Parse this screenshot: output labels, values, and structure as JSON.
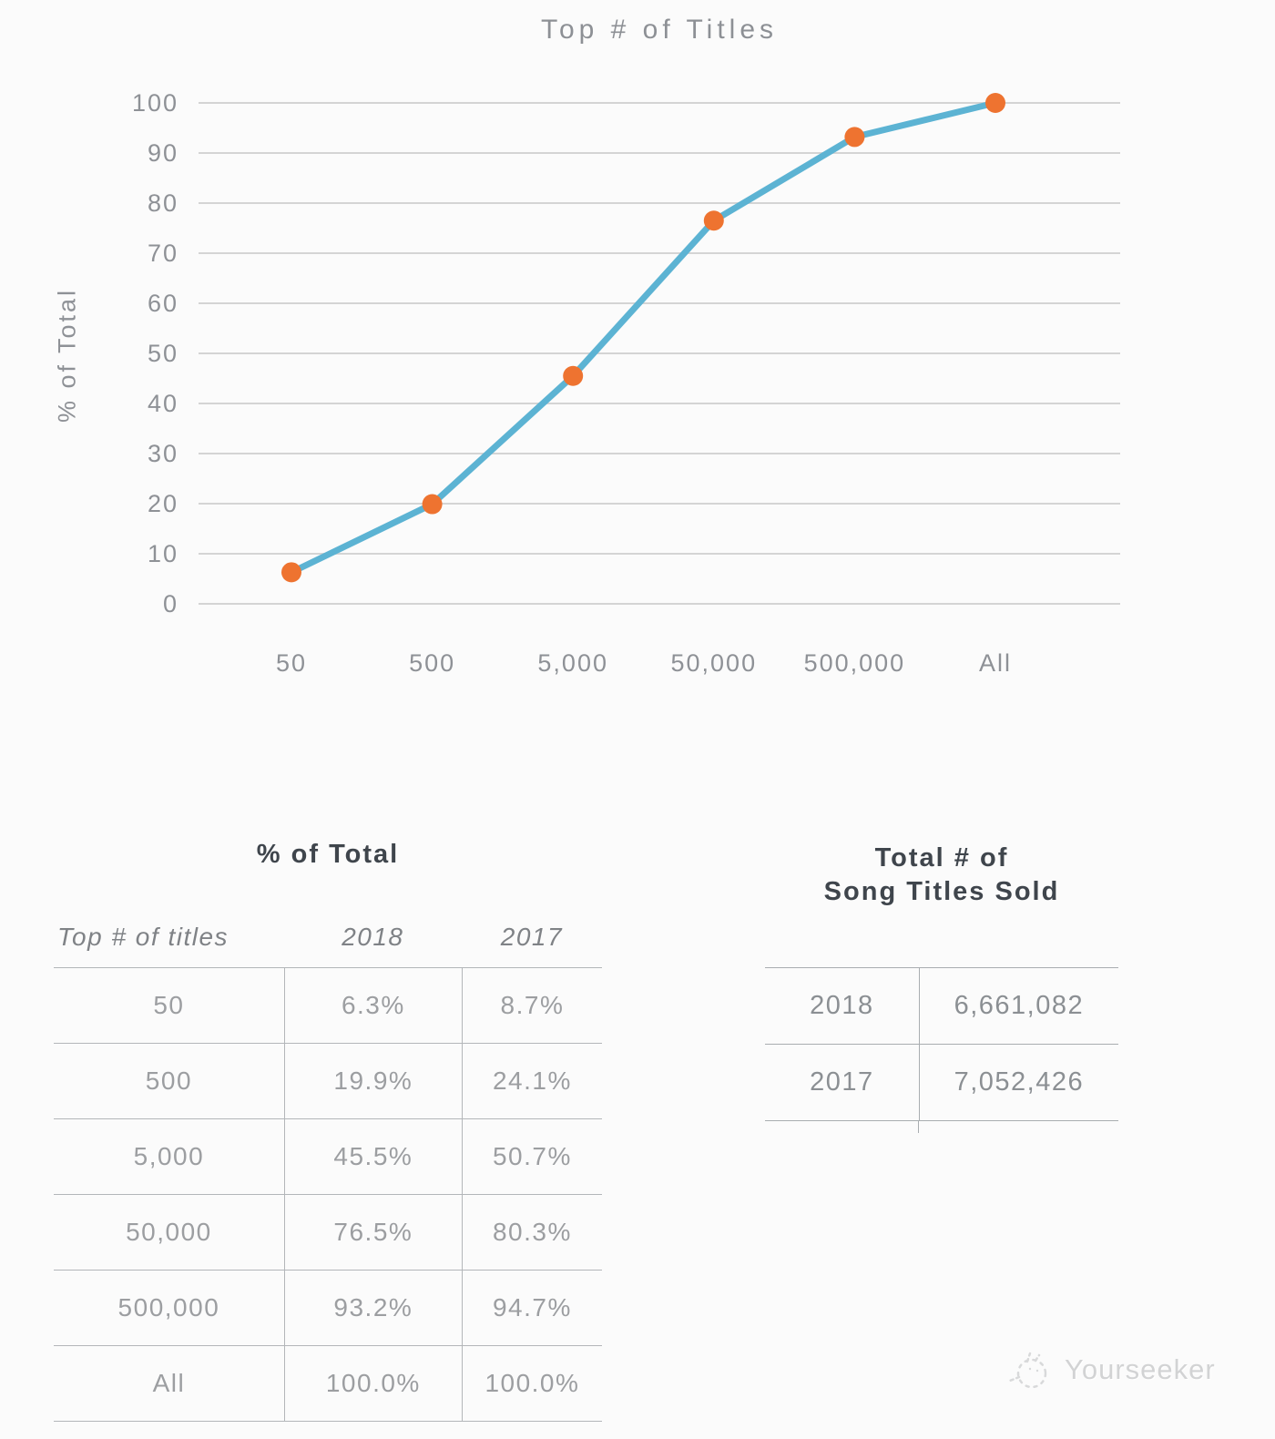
{
  "chart_data": {
    "type": "line",
    "title": "Top # of Titles",
    "xlabel": "",
    "ylabel": "% of Total",
    "categories": [
      "50",
      "500",
      "5,000",
      "50,000",
      "500,000",
      "All"
    ],
    "series": [
      {
        "name": "2018",
        "values": [
          6.3,
          19.9,
          45.5,
          76.5,
          93.2,
          100.0
        ]
      }
    ],
    "ylim": [
      0,
      100
    ],
    "yticks": [
      0,
      10,
      20,
      30,
      40,
      50,
      60,
      70,
      80,
      90,
      100
    ],
    "grid": "horizontal",
    "legend": "none",
    "line_color": "#5cb3d3",
    "marker_color": "#ee7330",
    "grid_color": "#d4d4d4",
    "tick_color": "#8e9196"
  },
  "percent_table": {
    "title": "% of Total",
    "col_headers": [
      "Top # of titles",
      "2018",
      "2017"
    ],
    "rows": [
      [
        "50",
        "6.3%",
        "8.7%"
      ],
      [
        "500",
        "19.9%",
        "24.1%"
      ],
      [
        "5,000",
        "45.5%",
        "50.7%"
      ],
      [
        "50,000",
        "76.5%",
        "80.3%"
      ],
      [
        "500,000",
        "93.2%",
        "94.7%"
      ],
      [
        "All",
        "100.0%",
        "100.0%"
      ]
    ]
  },
  "totals_table": {
    "title_lines": [
      "Total # of",
      "Song Titles Sold"
    ],
    "rows": [
      [
        "2018",
        "6,661,082"
      ],
      [
        "2017",
        "7,052,426"
      ]
    ]
  },
  "watermark": {
    "label": "Yourseeker",
    "icon": "yourseeker-sketch-logo-icon"
  }
}
